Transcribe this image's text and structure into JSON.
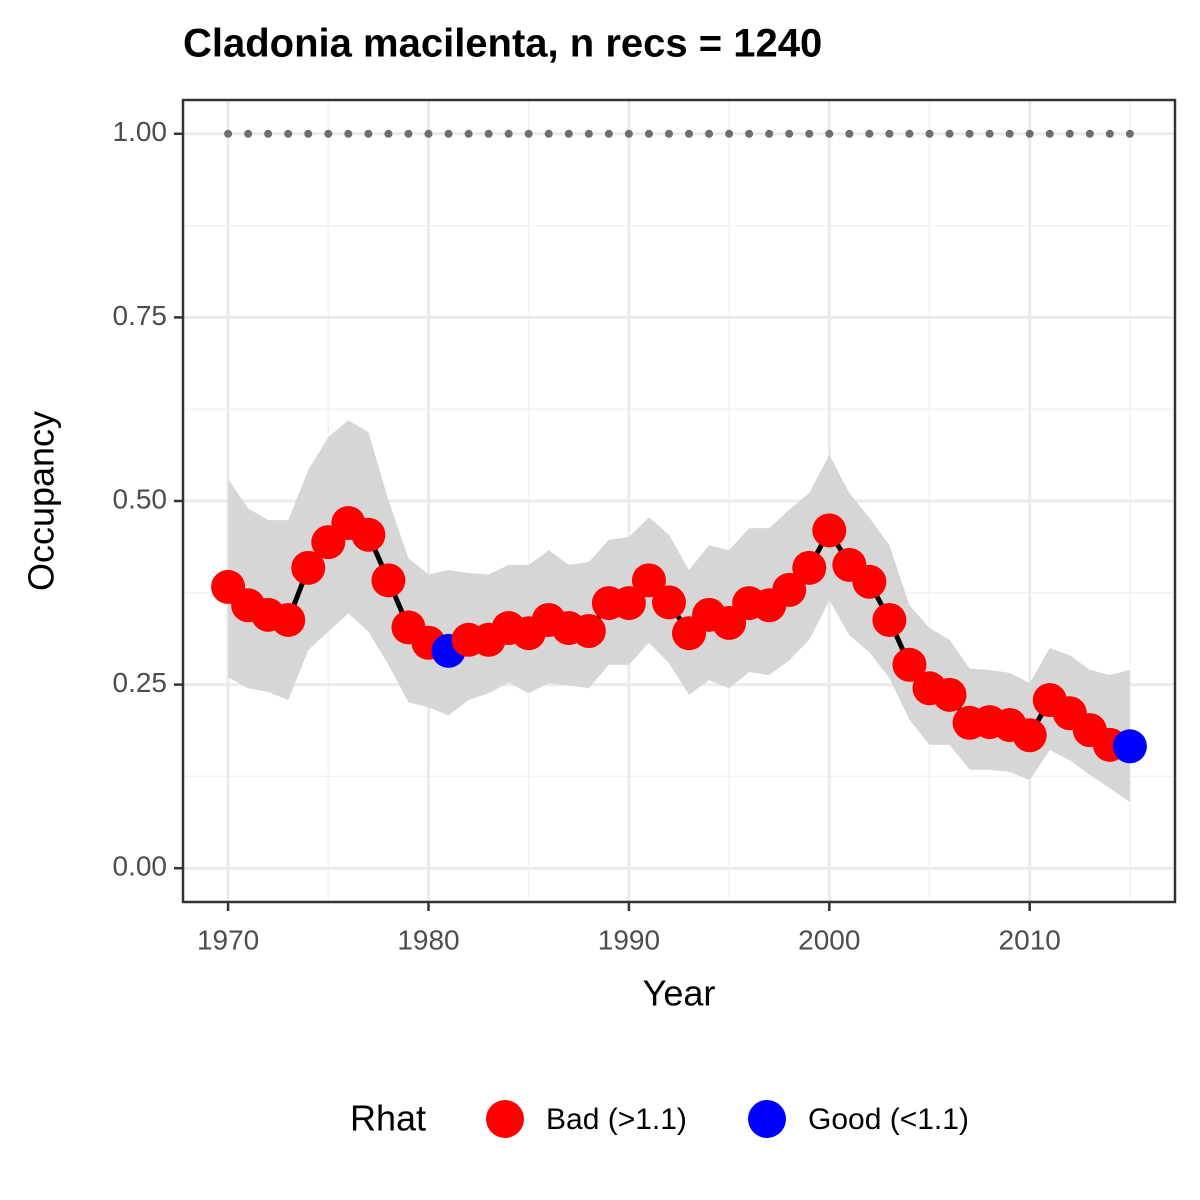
{
  "chart_data": {
    "type": "line",
    "title": "Cladonia macilenta, n recs = 1240",
    "xlabel": "Year",
    "ylabel": "Occupancy",
    "x": [
      1970,
      1971,
      1972,
      1973,
      1974,
      1975,
      1976,
      1977,
      1978,
      1979,
      1980,
      1981,
      1982,
      1983,
      1984,
      1985,
      1986,
      1987,
      1988,
      1989,
      1990,
      1991,
      1992,
      1993,
      1994,
      1995,
      1996,
      1997,
      1998,
      1999,
      2000,
      2001,
      2002,
      2003,
      2004,
      2005,
      2006,
      2007,
      2008,
      2009,
      2010,
      2011,
      2012,
      2013,
      2014,
      2015
    ],
    "values": [
      0.383,
      0.358,
      0.345,
      0.338,
      0.409,
      0.444,
      0.47,
      0.454,
      0.392,
      0.328,
      0.307,
      0.296,
      0.311,
      0.311,
      0.327,
      0.32,
      0.338,
      0.327,
      0.323,
      0.361,
      0.361,
      0.392,
      0.362,
      0.32,
      0.345,
      0.334,
      0.361,
      0.358,
      0.379,
      0.409,
      0.46,
      0.413,
      0.39,
      0.338,
      0.277,
      0.245,
      0.236,
      0.198,
      0.199,
      0.195,
      0.181,
      0.229,
      0.211,
      0.188,
      0.168,
      0.166
    ],
    "upper": [
      0.53,
      0.49,
      0.474,
      0.474,
      0.542,
      0.587,
      0.61,
      0.594,
      0.501,
      0.422,
      0.4,
      0.406,
      0.402,
      0.4,
      0.413,
      0.413,
      0.433,
      0.413,
      0.417,
      0.447,
      0.451,
      0.478,
      0.454,
      0.406,
      0.44,
      0.433,
      0.463,
      0.463,
      0.488,
      0.511,
      0.563,
      0.511,
      0.477,
      0.44,
      0.358,
      0.327,
      0.311,
      0.272,
      0.27,
      0.266,
      0.252,
      0.3,
      0.29,
      0.27,
      0.263,
      0.27
    ],
    "lower": [
      0.26,
      0.245,
      0.24,
      0.229,
      0.297,
      0.322,
      0.347,
      0.322,
      0.277,
      0.226,
      0.219,
      0.208,
      0.229,
      0.238,
      0.253,
      0.238,
      0.252,
      0.249,
      0.245,
      0.277,
      0.277,
      0.307,
      0.279,
      0.236,
      0.256,
      0.245,
      0.267,
      0.263,
      0.283,
      0.311,
      0.365,
      0.317,
      0.294,
      0.259,
      0.202,
      0.168,
      0.168,
      0.134,
      0.134,
      0.131,
      0.12,
      0.161,
      0.147,
      0.127,
      0.109,
      0.09
    ],
    "rhat": [
      "Bad (>1.1)",
      "Bad (>1.1)",
      "Bad (>1.1)",
      "Bad (>1.1)",
      "Bad (>1.1)",
      "Bad (>1.1)",
      "Bad (>1.1)",
      "Bad (>1.1)",
      "Bad (>1.1)",
      "Bad (>1.1)",
      "Bad (>1.1)",
      "Good (<1.1)",
      "Bad (>1.1)",
      "Bad (>1.1)",
      "Bad (>1.1)",
      "Bad (>1.1)",
      "Bad (>1.1)",
      "Bad (>1.1)",
      "Bad (>1.1)",
      "Bad (>1.1)",
      "Bad (>1.1)",
      "Bad (>1.1)",
      "Bad (>1.1)",
      "Bad (>1.1)",
      "Bad (>1.1)",
      "Bad (>1.1)",
      "Bad (>1.1)",
      "Bad (>1.1)",
      "Bad (>1.1)",
      "Bad (>1.1)",
      "Bad (>1.1)",
      "Bad (>1.1)",
      "Bad (>1.1)",
      "Bad (>1.1)",
      "Bad (>1.1)",
      "Bad (>1.1)",
      "Bad (>1.1)",
      "Bad (>1.1)",
      "Bad (>1.1)",
      "Bad (>1.1)",
      "Bad (>1.1)",
      "Bad (>1.1)",
      "Bad (>1.1)",
      "Bad (>1.1)",
      "Bad (>1.1)",
      "Good (<1.1)"
    ],
    "legend": {
      "title": "Rhat",
      "entries": [
        {
          "name": "Bad (>1.1)",
          "color": "#ff0000"
        },
        {
          "name": "Good (<1.1)",
          "color": "#0000ff"
        }
      ]
    },
    "line_color": "#000000",
    "band_color": "#d6d6d6",
    "reference_line": 1,
    "reference_color": "#6e6e6e",
    "xlim": [
      1967.75,
      2017.25
    ],
    "ylim": [
      -0.046,
      1.046
    ],
    "xticks": [
      1970,
      1980,
      1990,
      2000,
      2010
    ],
    "yticks": [
      {
        "value": 0,
        "label": "0.00"
      },
      {
        "value": 0.25,
        "label": "0.25"
      },
      {
        "value": 0.5,
        "label": "0.50"
      },
      {
        "value": 0.75,
        "label": "0.75"
      },
      {
        "value": 1,
        "label": "1.00"
      }
    ],
    "xminor": [
      1975,
      1985,
      1995,
      2005,
      2015
    ],
    "yminor": [
      0.125,
      0.375,
      0.625,
      0.875
    ],
    "grid": true
  }
}
